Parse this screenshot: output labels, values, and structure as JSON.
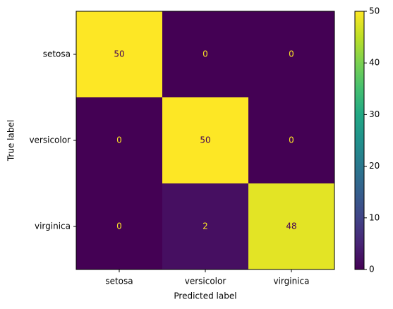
{
  "chart_data": {
    "type": "heatmap",
    "x_label": "Predicted label",
    "y_label": "True label",
    "x_categories": [
      "setosa",
      "versicolor",
      "virginica"
    ],
    "y_categories": [
      "setosa",
      "versicolor",
      "virginica"
    ],
    "values": [
      [
        50,
        0,
        0
      ],
      [
        0,
        50,
        0
      ],
      [
        0,
        2,
        48
      ]
    ],
    "colormap": "viridis",
    "clim": [
      0,
      50
    ],
    "colorbar_ticks": [
      0,
      10,
      20,
      30,
      40,
      50
    ]
  }
}
